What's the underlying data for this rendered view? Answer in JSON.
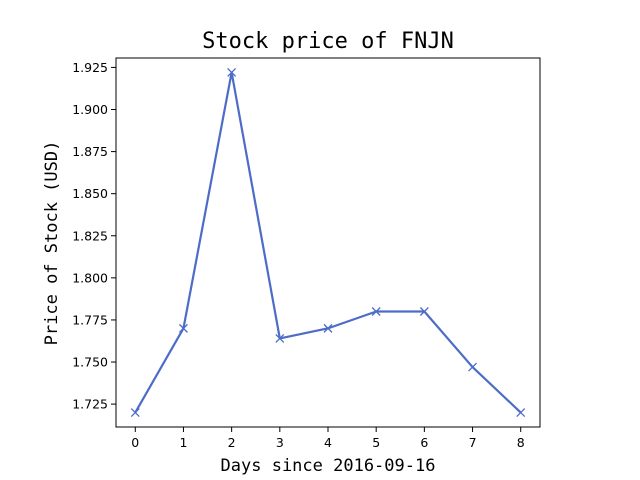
{
  "chart_data": {
    "type": "line",
    "title": "Stock price of FNJN",
    "xlabel": "Days since 2016-09-16",
    "ylabel": "Price of Stock (USD)",
    "x": [
      0,
      1,
      2,
      3,
      4,
      5,
      6,
      7,
      8
    ],
    "series": [
      {
        "values": [
          1.72,
          1.77,
          1.922,
          1.764,
          1.77,
          1.78,
          1.78,
          1.747,
          1.72
        ],
        "color": "#4c6cc8",
        "marker": "x"
      }
    ],
    "xlim": [
      -0.4,
      8.4
    ],
    "ylim": [
      1.7114,
      1.9306
    ],
    "xticks": [
      0,
      1,
      2,
      3,
      4,
      5,
      6,
      7,
      8
    ],
    "yticks": [
      1.725,
      1.75,
      1.775,
      1.8,
      1.825,
      1.85,
      1.875,
      1.9,
      1.925
    ],
    "ytick_labels": [
      "1.725",
      "1.750",
      "1.775",
      "1.800",
      "1.825",
      "1.850",
      "1.875",
      "1.900",
      "1.925"
    ],
    "grid": false
  }
}
